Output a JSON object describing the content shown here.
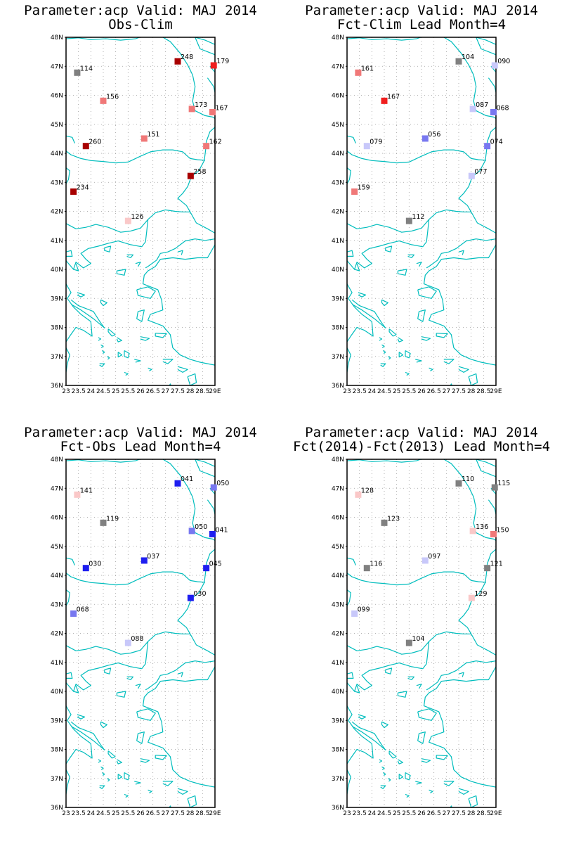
{
  "lat_labels": [
    "48N",
    "47N",
    "46N",
    "45N",
    "44N",
    "43N",
    "42N",
    "41N",
    "40N",
    "39N",
    "38N",
    "37N",
    "36N"
  ],
  "lon_labels": [
    "23",
    "23.5",
    "24",
    "24.5",
    "25",
    "25.5",
    "26",
    "26.5",
    "27",
    "27.5",
    "28",
    "28.5",
    "29E"
  ],
  "colors": {
    "coast": "#00bdbd",
    "grid": "#9a9a9a",
    "gray": "#808080",
    "dark_red": "#a80000",
    "red": "#f01e1e",
    "salmon": "#f07878",
    "light_pink": "#fac8c8",
    "blue": "#1e1ef0",
    "mid_blue": "#7878f0",
    "light_blue": "#c8c8fa"
  },
  "panels": [
    {
      "title1": "Parameter:acp Valid: MAJ 2014",
      "title2": "Obs-Clim",
      "stations": [
        {
          "lon": 23.45,
          "lat": 46.78,
          "label": "114",
          "color": "gray"
        },
        {
          "lon": 24.5,
          "lat": 45.81,
          "label": "156",
          "color": "salmon"
        },
        {
          "lon": 27.5,
          "lat": 47.17,
          "label": "248",
          "color": "dark_red"
        },
        {
          "lon": 28.95,
          "lat": 47.03,
          "label": "179",
          "color": "red"
        },
        {
          "lon": 28.07,
          "lat": 45.53,
          "label": "173",
          "color": "salmon"
        },
        {
          "lon": 28.9,
          "lat": 45.42,
          "label": "167",
          "color": "salmon"
        },
        {
          "lon": 26.15,
          "lat": 44.51,
          "label": "151",
          "color": "salmon"
        },
        {
          "lon": 28.65,
          "lat": 44.25,
          "label": "162",
          "color": "salmon"
        },
        {
          "lon": 23.8,
          "lat": 44.25,
          "label": "260",
          "color": "dark_red"
        },
        {
          "lon": 28.02,
          "lat": 43.22,
          "label": "258",
          "color": "dark_red"
        },
        {
          "lon": 23.3,
          "lat": 42.68,
          "label": "234",
          "color": "dark_red"
        },
        {
          "lon": 25.5,
          "lat": 41.67,
          "label": "126",
          "color": "light_pink"
        }
      ]
    },
    {
      "title1": "Parameter:acp Valid: MAJ 2014",
      "title2": "Fct-Clim Lead Month=4",
      "stations": [
        {
          "lon": 23.45,
          "lat": 46.78,
          "label": "161",
          "color": "salmon"
        },
        {
          "lon": 24.5,
          "lat": 45.81,
          "label": "167",
          "color": "red"
        },
        {
          "lon": 27.5,
          "lat": 47.17,
          "label": "104",
          "color": "gray"
        },
        {
          "lon": 28.95,
          "lat": 47.03,
          "label": "090",
          "color": "light_blue"
        },
        {
          "lon": 28.07,
          "lat": 45.53,
          "label": "087",
          "color": "light_blue"
        },
        {
          "lon": 28.9,
          "lat": 45.42,
          "label": "068",
          "color": "mid_blue"
        },
        {
          "lon": 26.15,
          "lat": 44.51,
          "label": "056",
          "color": "mid_blue"
        },
        {
          "lon": 28.65,
          "lat": 44.25,
          "label": "074",
          "color": "mid_blue"
        },
        {
          "lon": 23.8,
          "lat": 44.25,
          "label": "079",
          "color": "light_blue"
        },
        {
          "lon": 28.02,
          "lat": 43.22,
          "label": "077",
          "color": "light_blue"
        },
        {
          "lon": 23.3,
          "lat": 42.68,
          "label": "159",
          "color": "salmon"
        },
        {
          "lon": 25.5,
          "lat": 41.67,
          "label": "112",
          "color": "gray"
        }
      ]
    },
    {
      "title1": "Parameter:acp Valid: MAJ 2014",
      "title2": "Fct-Obs Lead Month=4",
      "stations": [
        {
          "lon": 23.45,
          "lat": 46.78,
          "label": "141",
          "color": "light_pink"
        },
        {
          "lon": 24.5,
          "lat": 45.81,
          "label": "119",
          "color": "gray"
        },
        {
          "lon": 27.5,
          "lat": 47.17,
          "label": "041",
          "color": "blue"
        },
        {
          "lon": 28.95,
          "lat": 47.03,
          "label": "050",
          "color": "mid_blue"
        },
        {
          "lon": 28.07,
          "lat": 45.53,
          "label": "050",
          "color": "mid_blue"
        },
        {
          "lon": 28.9,
          "lat": 45.42,
          "label": "041",
          "color": "blue"
        },
        {
          "lon": 26.15,
          "lat": 44.51,
          "label": "037",
          "color": "blue"
        },
        {
          "lon": 28.65,
          "lat": 44.25,
          "label": "045",
          "color": "blue"
        },
        {
          "lon": 23.8,
          "lat": 44.25,
          "label": "030",
          "color": "blue"
        },
        {
          "lon": 28.02,
          "lat": 43.22,
          "label": "030",
          "color": "blue"
        },
        {
          "lon": 23.3,
          "lat": 42.68,
          "label": "068",
          "color": "mid_blue"
        },
        {
          "lon": 25.5,
          "lat": 41.67,
          "label": "088",
          "color": "light_blue"
        }
      ]
    },
    {
      "title1": "Parameter:acp Valid: MAJ 2014",
      "title2": "Fct(2014)-Fct(2013) Lead Month=4",
      "stations": [
        {
          "lon": 23.45,
          "lat": 46.78,
          "label": "128",
          "color": "light_pink"
        },
        {
          "lon": 24.5,
          "lat": 45.81,
          "label": "123",
          "color": "gray"
        },
        {
          "lon": 27.5,
          "lat": 47.17,
          "label": "110",
          "color": "gray"
        },
        {
          "lon": 28.95,
          "lat": 47.03,
          "label": "115",
          "color": "gray"
        },
        {
          "lon": 28.07,
          "lat": 45.53,
          "label": "136",
          "color": "light_pink"
        },
        {
          "lon": 28.9,
          "lat": 45.42,
          "label": "150",
          "color": "salmon"
        },
        {
          "lon": 26.15,
          "lat": 44.51,
          "label": "097",
          "color": "light_blue"
        },
        {
          "lon": 28.65,
          "lat": 44.25,
          "label": "121",
          "color": "gray"
        },
        {
          "lon": 23.8,
          "lat": 44.25,
          "label": "116",
          "color": "gray"
        },
        {
          "lon": 28.02,
          "lat": 43.22,
          "label": "129",
          "color": "light_pink"
        },
        {
          "lon": 23.3,
          "lat": 42.68,
          "label": "099",
          "color": "light_blue"
        },
        {
          "lon": 25.5,
          "lat": 41.67,
          "label": "104",
          "color": "gray"
        }
      ]
    }
  ]
}
